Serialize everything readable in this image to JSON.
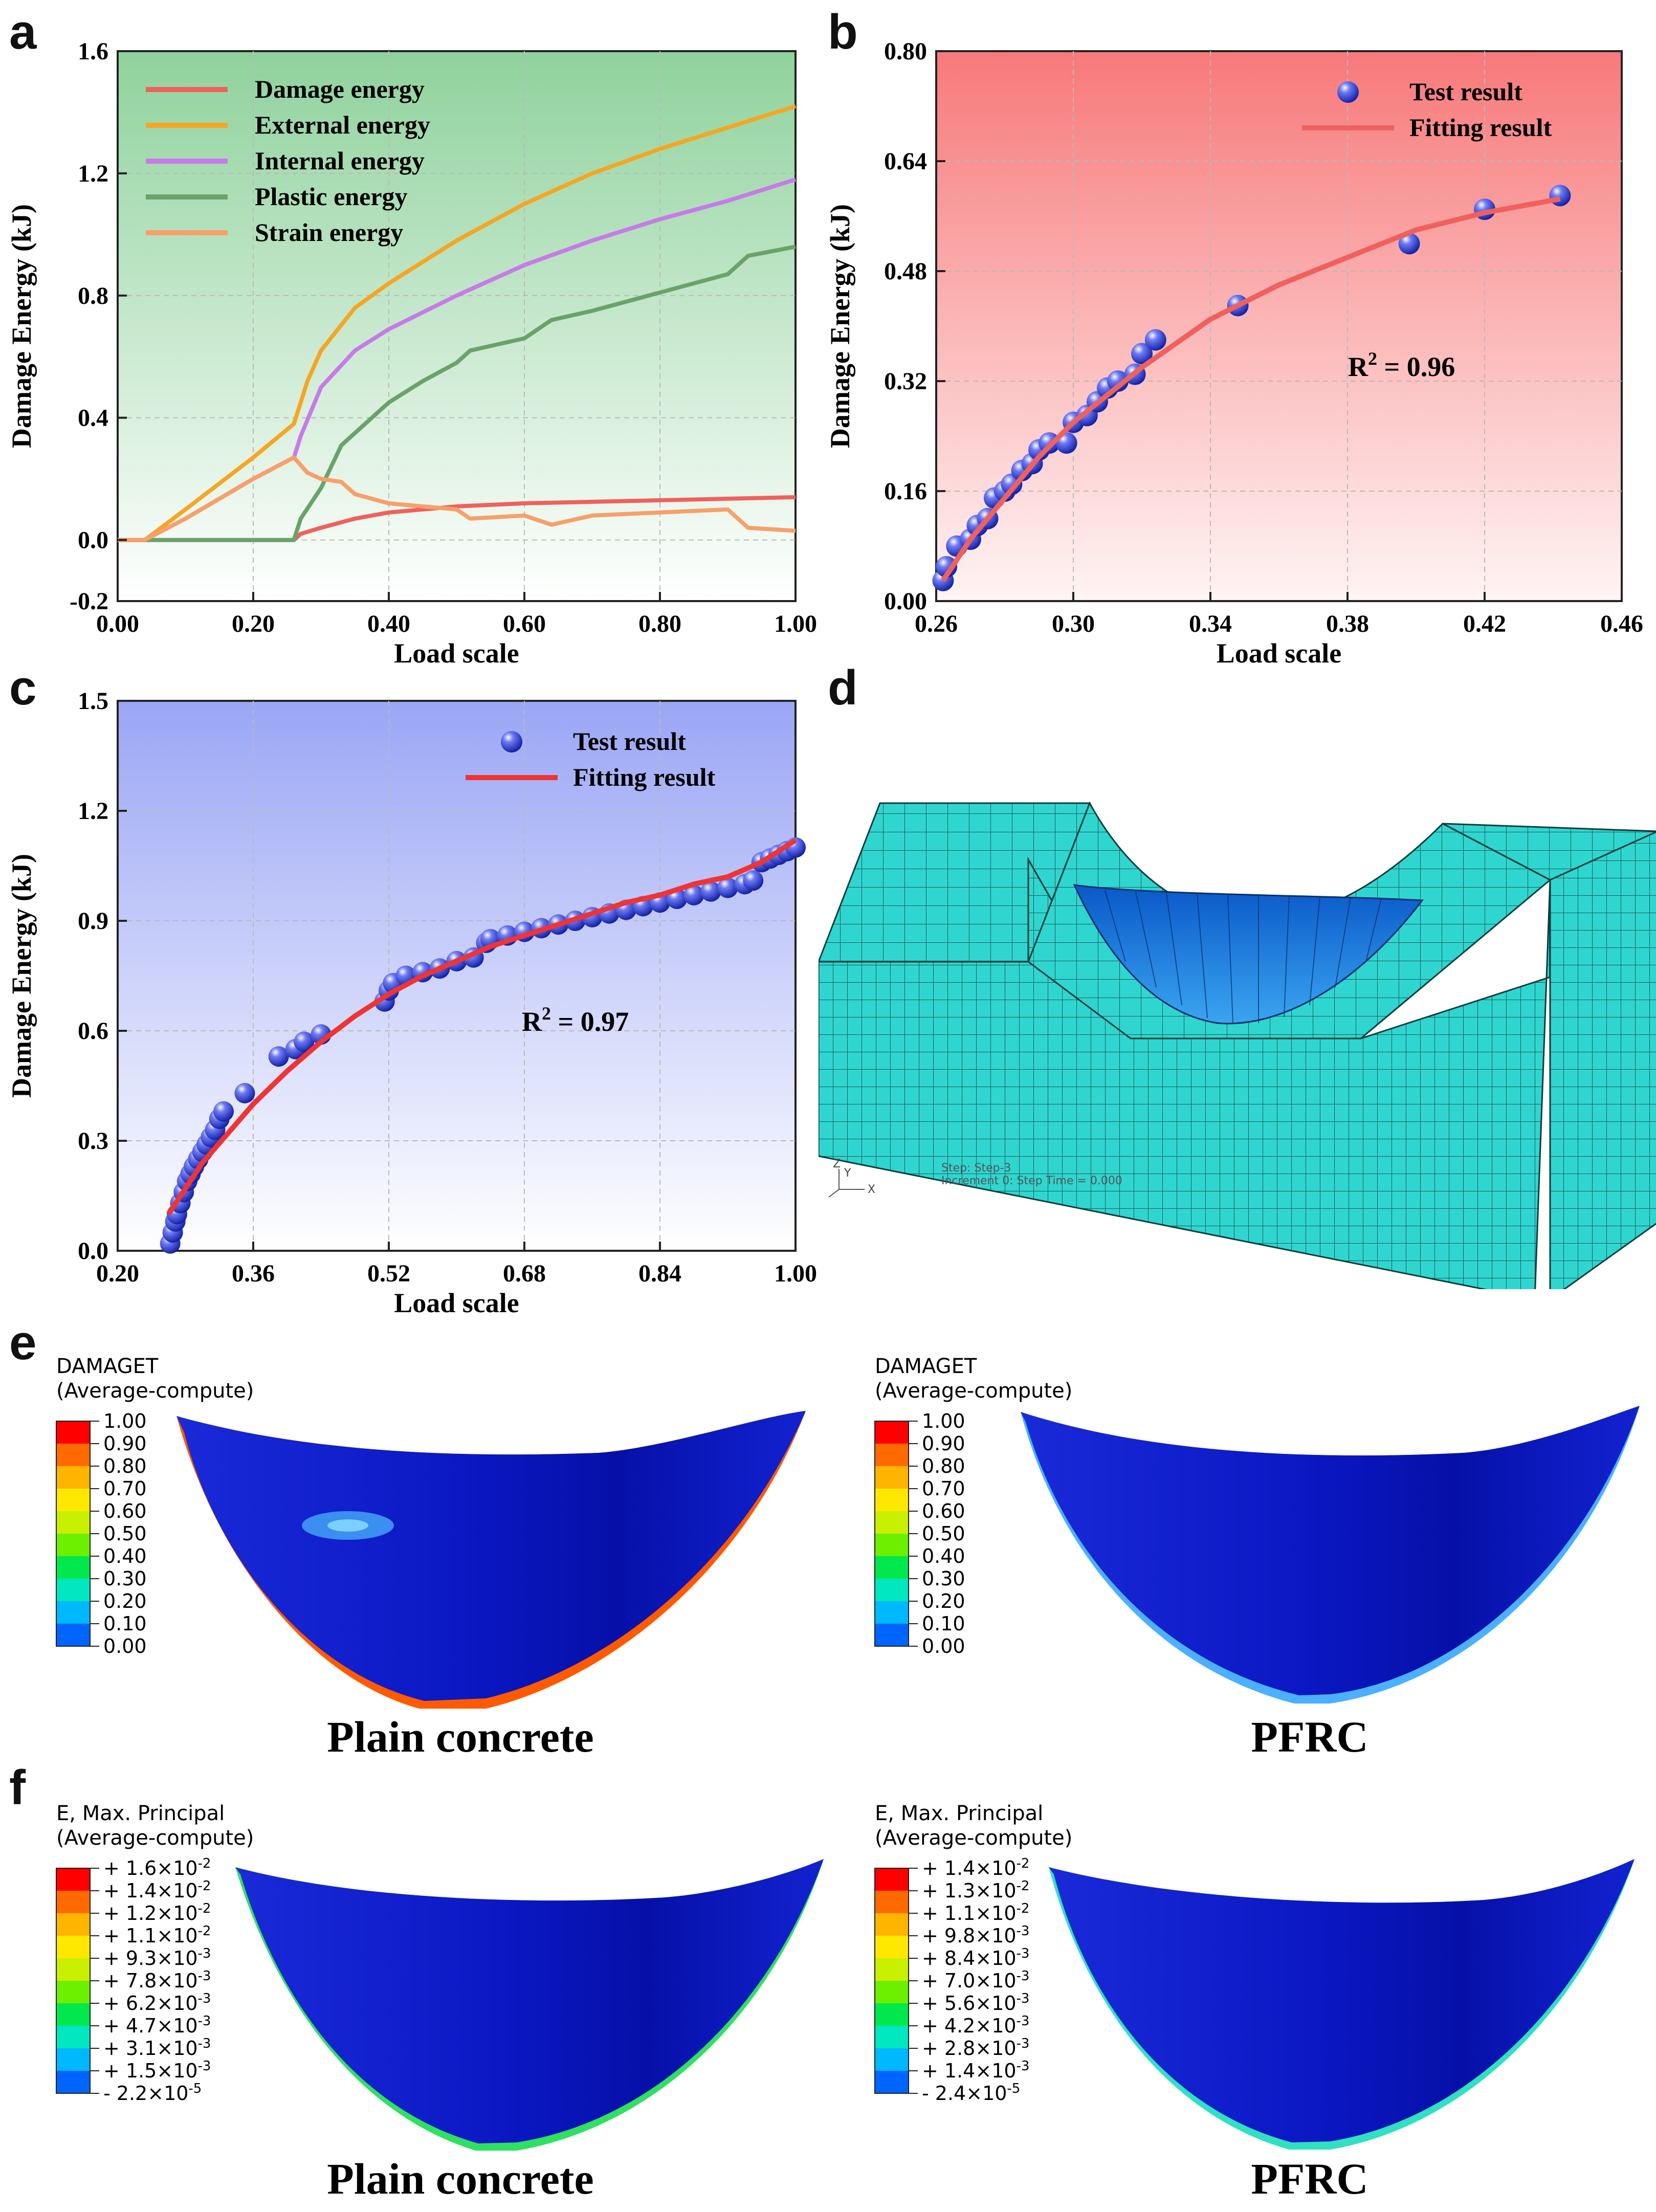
{
  "panel_labels": {
    "a": "a",
    "b": "b",
    "c": "c",
    "d": "d",
    "e": "e",
    "f": "f"
  },
  "chart_data": [
    {
      "id": "a",
      "type": "line",
      "title": "",
      "xlabel": "Load scale",
      "ylabel": "Damage Energy (kJ)",
      "xlim": [
        0.0,
        1.0
      ],
      "ylim": [
        -0.2,
        1.6
      ],
      "xticks": [
        "0.00",
        "0.20",
        "0.40",
        "0.60",
        "0.80",
        "1.00"
      ],
      "yticks": [
        "-0.2",
        "0.0",
        "0.4",
        "0.8",
        "1.2",
        "1.6"
      ],
      "legend_position": "top-left",
      "series": [
        {
          "name": "Damage energy",
          "color": "#f0605d",
          "x": [
            0,
            0.26,
            0.27,
            0.3,
            0.35,
            0.4,
            0.5,
            0.6,
            0.7,
            0.8,
            0.9,
            1.0
          ],
          "y": [
            0,
            0,
            0.02,
            0.04,
            0.07,
            0.09,
            0.11,
            0.12,
            0.125,
            0.13,
            0.135,
            0.14
          ]
        },
        {
          "name": "External energy",
          "color": "#f5a623",
          "x": [
            0,
            0.04,
            0.1,
            0.2,
            0.26,
            0.28,
            0.3,
            0.35,
            0.4,
            0.5,
            0.6,
            0.7,
            0.8,
            0.9,
            1.0
          ],
          "y": [
            0,
            0,
            0.1,
            0.27,
            0.38,
            0.52,
            0.62,
            0.76,
            0.84,
            0.98,
            1.1,
            1.2,
            1.28,
            1.35,
            1.42
          ]
        },
        {
          "name": "Internal energy",
          "color": "#c77be8",
          "x": [
            0,
            0.04,
            0.1,
            0.2,
            0.26,
            0.27,
            0.3,
            0.35,
            0.4,
            0.5,
            0.6,
            0.7,
            0.8,
            0.9,
            1.0
          ],
          "y": [
            0,
            0,
            0.07,
            0.2,
            0.27,
            0.34,
            0.5,
            0.62,
            0.69,
            0.8,
            0.9,
            0.98,
            1.05,
            1.11,
            1.18
          ]
        },
        {
          "name": "Plastic energy",
          "color": "#6aa36a",
          "x": [
            0,
            0.26,
            0.27,
            0.3,
            0.33,
            0.35,
            0.4,
            0.45,
            0.5,
            0.52,
            0.6,
            0.64,
            0.7,
            0.8,
            0.9,
            0.93,
            1.0
          ],
          "y": [
            0,
            0,
            0.07,
            0.17,
            0.31,
            0.35,
            0.45,
            0.52,
            0.58,
            0.62,
            0.66,
            0.72,
            0.75,
            0.81,
            0.87,
            0.93,
            0.96
          ]
        },
        {
          "name": "Strain energy",
          "color": "#f7a06a",
          "x": [
            0,
            0.04,
            0.1,
            0.2,
            0.26,
            0.28,
            0.3,
            0.33,
            0.35,
            0.4,
            0.45,
            0.5,
            0.52,
            0.6,
            0.64,
            0.7,
            0.8,
            0.9,
            0.93,
            1.0
          ],
          "y": [
            0,
            0,
            0.07,
            0.2,
            0.27,
            0.22,
            0.2,
            0.19,
            0.15,
            0.12,
            0.11,
            0.1,
            0.07,
            0.08,
            0.05,
            0.08,
            0.09,
            0.1,
            0.04,
            0.03
          ]
        }
      ]
    },
    {
      "id": "b",
      "type": "scatter",
      "title": "",
      "xlabel": "Load scale",
      "ylabel": "Damage Energy (kJ)",
      "xlim": [
        0.26,
        0.46
      ],
      "ylim": [
        0.0,
        0.8
      ],
      "xticks": [
        "0.26",
        "0.30",
        "0.34",
        "0.38",
        "0.42",
        "0.46"
      ],
      "yticks": [
        "0.00",
        "0.16",
        "0.32",
        "0.48",
        "0.64",
        "0.80"
      ],
      "legend_position": "top-right",
      "annotation": "R",
      "annotation_sup": "2",
      "annotation_tail": " = 0.96",
      "series": [
        {
          "name": "Test result",
          "marker": "sphere",
          "color": "#2f3fd6",
          "x": [
            0.262,
            0.263,
            0.266,
            0.27,
            0.272,
            0.275,
            0.277,
            0.28,
            0.282,
            0.285,
            0.288,
            0.29,
            0.293,
            0.298,
            0.3,
            0.304,
            0.307,
            0.31,
            0.313,
            0.318,
            0.32,
            0.324,
            0.348,
            0.398,
            0.42,
            0.442
          ],
          "y": [
            0.03,
            0.05,
            0.08,
            0.09,
            0.11,
            0.12,
            0.15,
            0.16,
            0.17,
            0.19,
            0.2,
            0.22,
            0.23,
            0.23,
            0.26,
            0.27,
            0.29,
            0.31,
            0.32,
            0.33,
            0.36,
            0.38,
            0.43,
            0.52,
            0.57,
            0.59
          ]
        },
        {
          "name": "Fitting result",
          "line": true,
          "color": "#f0605d",
          "x": [
            0.262,
            0.27,
            0.28,
            0.29,
            0.3,
            0.31,
            0.32,
            0.34,
            0.36,
            0.38,
            0.4,
            0.42,
            0.442
          ],
          "y": [
            0.03,
            0.09,
            0.15,
            0.21,
            0.26,
            0.3,
            0.34,
            0.41,
            0.46,
            0.5,
            0.54,
            0.565,
            0.585
          ]
        }
      ]
    },
    {
      "id": "c",
      "type": "scatter",
      "title": "",
      "xlabel": "Load scale",
      "ylabel": "Damage Energy (kJ)",
      "xlim": [
        0.2,
        1.0
      ],
      "ylim": [
        0.0,
        1.5
      ],
      "xticks": [
        "0.20",
        "0.36",
        "0.52",
        "0.68",
        "0.84",
        "1.00"
      ],
      "yticks": [
        "0.0",
        "0.3",
        "0.6",
        "0.9",
        "1.2",
        "1.5"
      ],
      "legend_position": "top-right",
      "annotation": "R",
      "annotation_sup": "2",
      "annotation_tail": " = 0.97",
      "series": [
        {
          "name": "Test result",
          "marker": "sphere",
          "color": "#2f3fd6",
          "x": [
            0.262,
            0.265,
            0.268,
            0.27,
            0.274,
            0.278,
            0.282,
            0.286,
            0.29,
            0.295,
            0.3,
            0.305,
            0.31,
            0.315,
            0.32,
            0.325,
            0.35,
            0.39,
            0.41,
            0.42,
            0.44,
            0.515,
            0.52,
            0.525,
            0.54,
            0.56,
            0.58,
            0.6,
            0.62,
            0.635,
            0.64,
            0.66,
            0.68,
            0.7,
            0.72,
            0.74,
            0.76,
            0.78,
            0.8,
            0.82,
            0.84,
            0.86,
            0.88,
            0.9,
            0.92,
            0.94,
            0.95,
            0.96,
            0.97,
            0.98,
            0.99,
            1.0
          ],
          "y": [
            0.02,
            0.05,
            0.08,
            0.1,
            0.13,
            0.16,
            0.19,
            0.21,
            0.23,
            0.25,
            0.27,
            0.29,
            0.31,
            0.33,
            0.36,
            0.38,
            0.43,
            0.53,
            0.55,
            0.57,
            0.59,
            0.68,
            0.71,
            0.73,
            0.75,
            0.76,
            0.77,
            0.79,
            0.8,
            0.84,
            0.85,
            0.86,
            0.87,
            0.88,
            0.89,
            0.9,
            0.91,
            0.92,
            0.93,
            0.94,
            0.95,
            0.96,
            0.97,
            0.98,
            0.99,
            1.0,
            1.01,
            1.06,
            1.07,
            1.08,
            1.09,
            1.1
          ]
        },
        {
          "name": "Fitting result",
          "line": true,
          "color": "#f03333",
          "x": [
            0.26,
            0.28,
            0.3,
            0.33,
            0.36,
            0.4,
            0.44,
            0.48,
            0.52,
            0.56,
            0.6,
            0.64,
            0.68,
            0.72,
            0.76,
            0.8,
            0.84,
            0.88,
            0.92,
            0.96,
            1.0
          ],
          "y": [
            0.1,
            0.17,
            0.24,
            0.32,
            0.4,
            0.49,
            0.57,
            0.64,
            0.7,
            0.75,
            0.79,
            0.83,
            0.86,
            0.89,
            0.92,
            0.95,
            0.97,
            1.0,
            1.02,
            1.06,
            1.12
          ]
        }
      ]
    }
  ],
  "panel_d": {
    "step_line1": "Step: Step-3",
    "step_line2": "Increment      0: Step Time =      0.000",
    "triad_z": "Z",
    "triad_y": "Y",
    "triad_x": "X"
  },
  "panel_e": {
    "left": {
      "legend_title1": "DAMAGET",
      "legend_title2": "(Average-compute)",
      "values": [
        "1.00",
        "0.90",
        "0.80",
        "0.70",
        "0.60",
        "0.50",
        "0.40",
        "0.30",
        "0.20",
        "0.10",
        "0.00"
      ],
      "caption": "Plain concrete"
    },
    "right": {
      "legend_title1": "DAMAGET",
      "legend_title2": "(Average-compute)",
      "values": [
        "1.00",
        "0.90",
        "0.80",
        "0.70",
        "0.60",
        "0.50",
        "0.40",
        "0.30",
        "0.20",
        "0.10",
        "0.00"
      ],
      "caption": "PFRC"
    }
  },
  "panel_f": {
    "left": {
      "legend_title1": "E, Max. Principal",
      "legend_title2": "(Average-compute)",
      "values": [
        {
          "sign": "+",
          "mant": "1.6",
          "exp": "-2"
        },
        {
          "sign": "+",
          "mant": "1.4",
          "exp": "-2"
        },
        {
          "sign": "+",
          "mant": "1.2",
          "exp": "-2"
        },
        {
          "sign": "+",
          "mant": "1.1",
          "exp": "-2"
        },
        {
          "sign": "+",
          "mant": "9.3",
          "exp": "-3"
        },
        {
          "sign": "+",
          "mant": "7.8",
          "exp": "-3"
        },
        {
          "sign": "+",
          "mant": "6.2",
          "exp": "-3"
        },
        {
          "sign": "+",
          "mant": "4.7",
          "exp": "-3"
        },
        {
          "sign": "+",
          "mant": "3.1",
          "exp": "-3"
        },
        {
          "sign": "+",
          "mant": "1.5",
          "exp": "-3"
        },
        {
          "sign": "-",
          "mant": "2.2",
          "exp": "-5"
        }
      ],
      "caption": "Plain concrete"
    },
    "right": {
      "legend_title1": "E, Max. Principal",
      "legend_title2": "(Average-compute)",
      "values": [
        {
          "sign": "+",
          "mant": "1.4",
          "exp": "-2"
        },
        {
          "sign": "+",
          "mant": "1.3",
          "exp": "-2"
        },
        {
          "sign": "+",
          "mant": "1.1",
          "exp": "-2"
        },
        {
          "sign": "+",
          "mant": "9.8",
          "exp": "-3"
        },
        {
          "sign": "+",
          "mant": "8.4",
          "exp": "-3"
        },
        {
          "sign": "+",
          "mant": "7.0",
          "exp": "-3"
        },
        {
          "sign": "+",
          "mant": "5.6",
          "exp": "-3"
        },
        {
          "sign": "+",
          "mant": "4.2",
          "exp": "-3"
        },
        {
          "sign": "+",
          "mant": "2.8",
          "exp": "-3"
        },
        {
          "sign": "+",
          "mant": "1.4",
          "exp": "-3"
        },
        {
          "sign": "-",
          "mant": "2.4",
          "exp": "-5"
        }
      ],
      "caption": "PFRC"
    }
  },
  "colormap": [
    "#ff0000",
    "#ff6a00",
    "#ffb400",
    "#ffe800",
    "#c8f000",
    "#6cf000",
    "#00e84c",
    "#00e8c0",
    "#00b8ff",
    "#0064ff",
    "#0000ff"
  ]
}
